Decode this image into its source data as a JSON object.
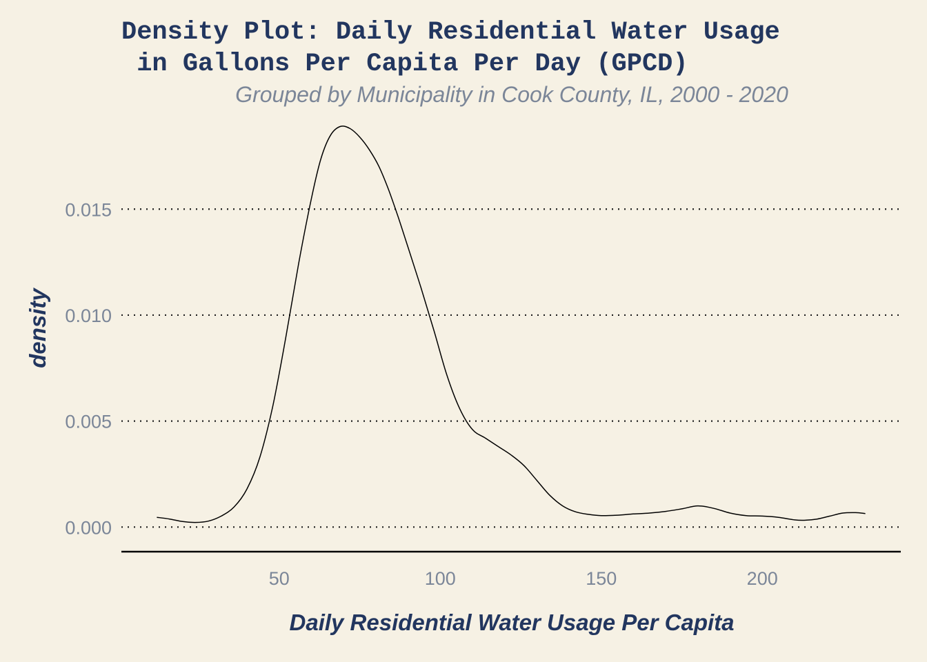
{
  "chart_data": {
    "type": "line",
    "title_line1": "Density Plot: Daily Residential Water Usage",
    "title_line2": "in Gallons Per Capita Per Day (GPCD)",
    "subtitle": "Grouped by Municipality in Cook County, IL, 2000 - 2020",
    "xlabel": "Daily Residential Water Usage Per Capita",
    "ylabel": "density",
    "xlim": [
      1,
      243
    ],
    "ylim": [
      -0.0009,
      0.0194
    ],
    "x_ticks": [
      50,
      100,
      150,
      200
    ],
    "x_tick_labels": [
      "50",
      "100",
      "150",
      "200"
    ],
    "y_ticks": [
      0,
      0.005,
      0.01,
      0.015
    ],
    "y_tick_labels": [
      "0.000",
      "0.005",
      "0.010",
      "0.015"
    ],
    "grid": "horizontal-dotted",
    "series": [
      {
        "x": [
          12,
          16,
          20,
          24,
          28,
          32,
          36,
          40,
          44,
          48,
          52,
          56,
          60,
          63,
          66,
          69,
          72,
          75,
          78,
          81,
          84,
          87,
          90,
          94,
          98,
          102,
          106,
          110,
          114,
          118,
          122,
          126,
          130,
          134,
          138,
          142,
          146,
          150,
          155,
          160,
          165,
          170,
          175,
          180,
          185,
          190,
          195,
          200,
          205,
          210,
          213,
          217,
          221,
          225,
          229,
          232
        ],
        "y": [
          0.00046,
          0.00038,
          0.00026,
          0.00022,
          0.00028,
          0.00052,
          0.00095,
          0.0018,
          0.0033,
          0.0057,
          0.0089,
          0.0124,
          0.0155,
          0.0174,
          0.0185,
          0.0189,
          0.0188,
          0.0184,
          0.0178,
          0.017,
          0.0159,
          0.0146,
          0.0132,
          0.0113,
          0.0093,
          0.0072,
          0.0056,
          0.0046,
          0.0042,
          0.0038,
          0.0034,
          0.0029,
          0.0022,
          0.0015,
          0.001,
          0.00072,
          0.0006,
          0.00054,
          0.00056,
          0.00062,
          0.00066,
          0.00074,
          0.00086,
          0.001,
          0.00088,
          0.00066,
          0.00054,
          0.00052,
          0.00046,
          0.00034,
          0.00032,
          0.00038,
          0.00052,
          0.00066,
          0.00068,
          0.00064
        ]
      }
    ]
  },
  "colors": {
    "background": "#f6f1e4",
    "title": "#22365f",
    "muted": "#7b8698",
    "line": "#000000"
  }
}
